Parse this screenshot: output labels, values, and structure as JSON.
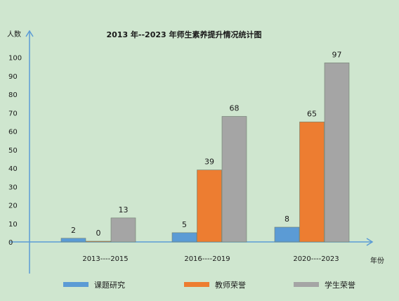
{
  "chart_data": {
    "type": "bar",
    "title": "2013 年--2023 年师生素养提升情况统计图",
    "ylabel": "人数",
    "xlabel": "年份",
    "categories": [
      "2013----2015",
      "2016----2019",
      "2020----2023"
    ],
    "series": [
      {
        "name": "课题研究",
        "values": [
          2,
          5,
          8
        ],
        "color": "#5b9bd5"
      },
      {
        "name": "教师荣誉",
        "values": [
          0,
          39,
          65
        ],
        "color": "#ed7d31"
      },
      {
        "name": "学生荣誉",
        "values": [
          13,
          68,
          97
        ],
        "color": "#a5a5a5"
      }
    ],
    "ylim": [
      0,
      100
    ],
    "yticks": [
      0,
      10,
      20,
      30,
      40,
      50,
      60,
      70,
      80,
      90,
      100
    ],
    "grid": false,
    "legend_position": "bottom"
  }
}
